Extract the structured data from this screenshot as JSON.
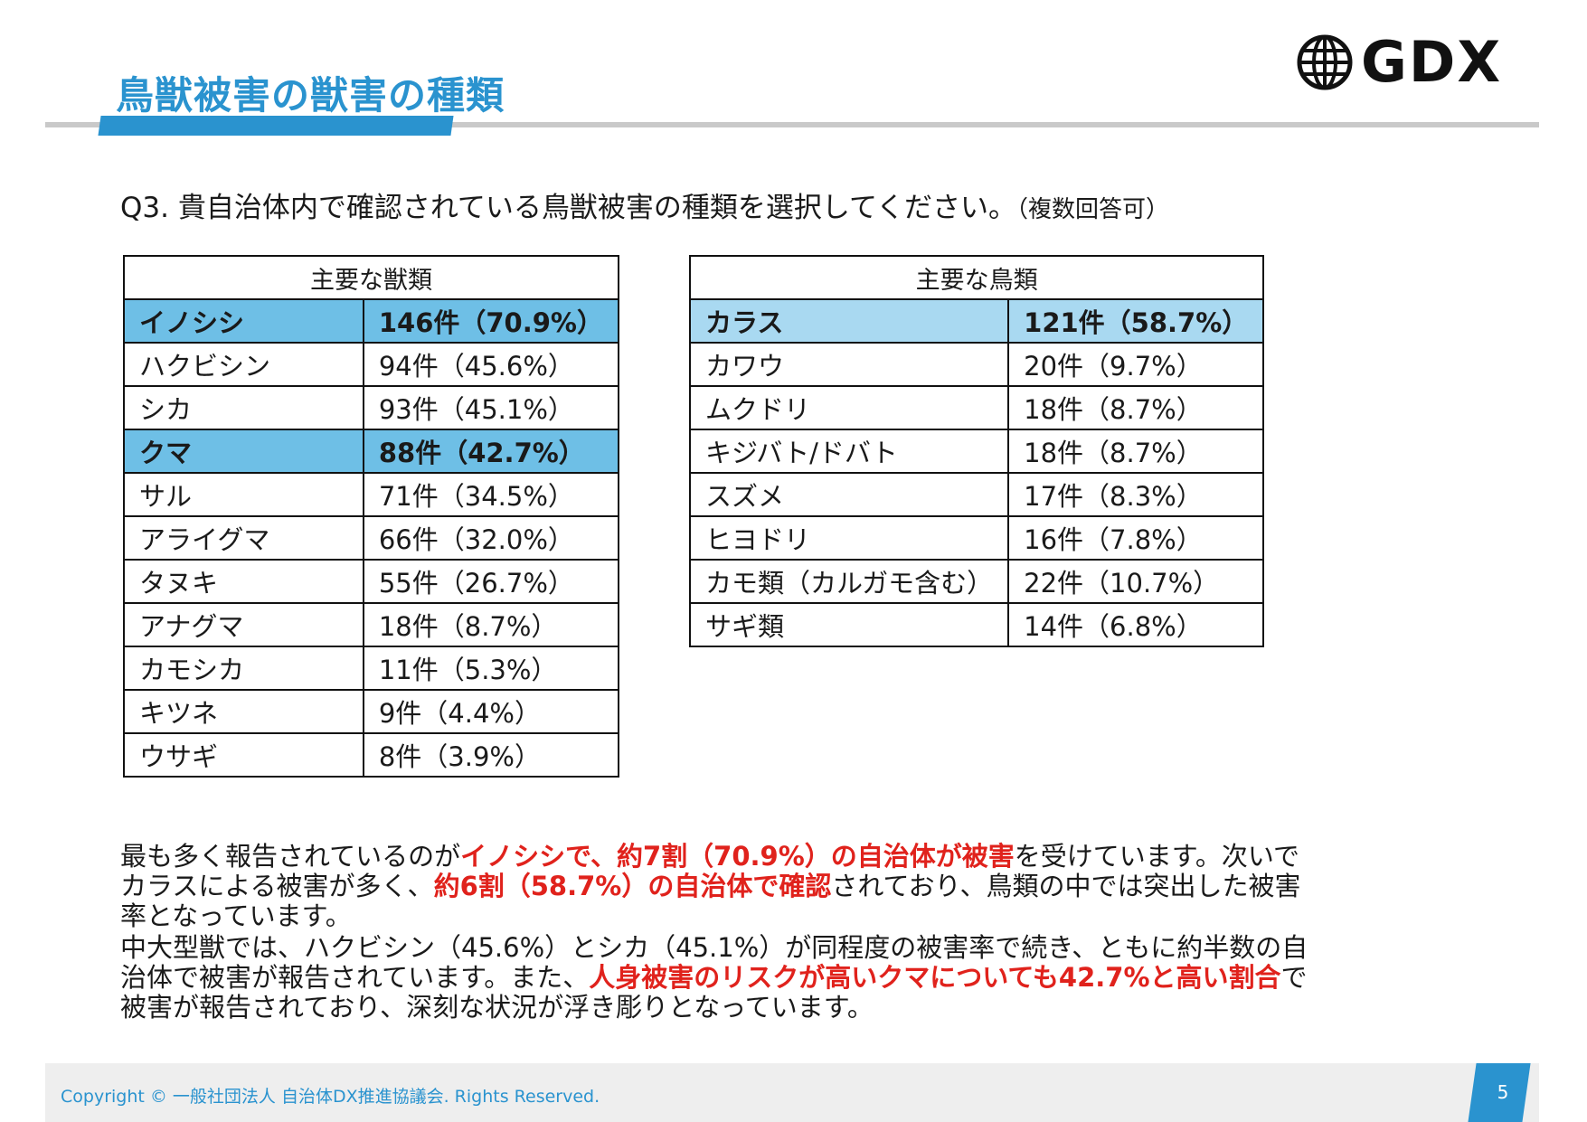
{
  "header": {
    "title": "鳥獣被害の獣害の種類",
    "logo_text": "GDX",
    "logo_icon": "globe-icon"
  },
  "question": {
    "text": "Q3. 貴自治体内で確認されている鳥獣被害の種類を選択してください。",
    "note": "（複数回答可）"
  },
  "mammals": {
    "header": "主要な獣類",
    "rows": [
      {
        "name": "イノシシ",
        "value": "146件（70.9%）"
      },
      {
        "name": "ハクビシン",
        "value": "94件（45.6%）"
      },
      {
        "name": "シカ",
        "value": "93件（45.1%）"
      },
      {
        "name": "クマ",
        "value": "88件（42.7%）"
      },
      {
        "name": "サル",
        "value": "71件（34.5%）"
      },
      {
        "name": "アライグマ",
        "value": "66件（32.0%）"
      },
      {
        "name": "タヌキ",
        "value": "55件（26.7%）"
      },
      {
        "name": "アナグマ",
        "value": "18件（8.7%）"
      },
      {
        "name": "カモシカ",
        "value": "11件（5.3%）"
      },
      {
        "name": "キツネ",
        "value": "9件（4.4%）"
      },
      {
        "name": "ウサギ",
        "value": "8件（3.9%）"
      }
    ]
  },
  "birds": {
    "header": "主要な鳥類",
    "rows": [
      {
        "name": "カラス",
        "value": "121件（58.7%）"
      },
      {
        "name": "カワウ",
        "value": "20件（9.7%）"
      },
      {
        "name": "ムクドリ",
        "value": "18件（8.7%）"
      },
      {
        "name": "キジバト/ドバト",
        "value": "18件（8.7%）"
      },
      {
        "name": "スズメ",
        "value": "17件（8.3%）"
      },
      {
        "name": "ヒヨドリ",
        "value": "16件（7.8%）"
      },
      {
        "name": "カモ類（カルガモ含む）",
        "value": "22件（10.7%）"
      },
      {
        "name": "サギ類",
        "value": "14件（6.8%）"
      }
    ]
  },
  "summary": {
    "p1": [
      {
        "text": "最も多く報告されているのが",
        "red": false
      },
      {
        "text": "イノシシで、約7割（70.9%）の自治体が被害",
        "red": true
      },
      {
        "text": "を受けています。次いでカラスによる被害が多く、",
        "red": false
      },
      {
        "text": "約6割（58.7%）の自治体で確認",
        "red": true
      },
      {
        "text": "されており、鳥類の中では突出した被害率となっています。",
        "red": false
      }
    ],
    "p2": [
      {
        "text": "中大型獣では、ハクビシン（45.6%）とシカ（45.1%）が同程度の被害率で続き、ともに約半数の自治体で被害が報告されています。また、",
        "red": false
      },
      {
        "text": "人身被害のリスクが高いクマについても42.7%と高い割合",
        "red": true
      },
      {
        "text": "で被害が報告されており、深刻な状況が浮き彫りとなっています。",
        "red": false
      }
    ]
  },
  "footer": {
    "copyright": "Copyright © 一般社団法人 自治体DX推進協議会. Rights Reserved.",
    "page": "5"
  },
  "colors": {
    "accent": "#2a93cf",
    "highlight_dark": "#6ebfe6",
    "highlight_light": "#a9d9f1",
    "emphasis_red": "#e0221c"
  }
}
